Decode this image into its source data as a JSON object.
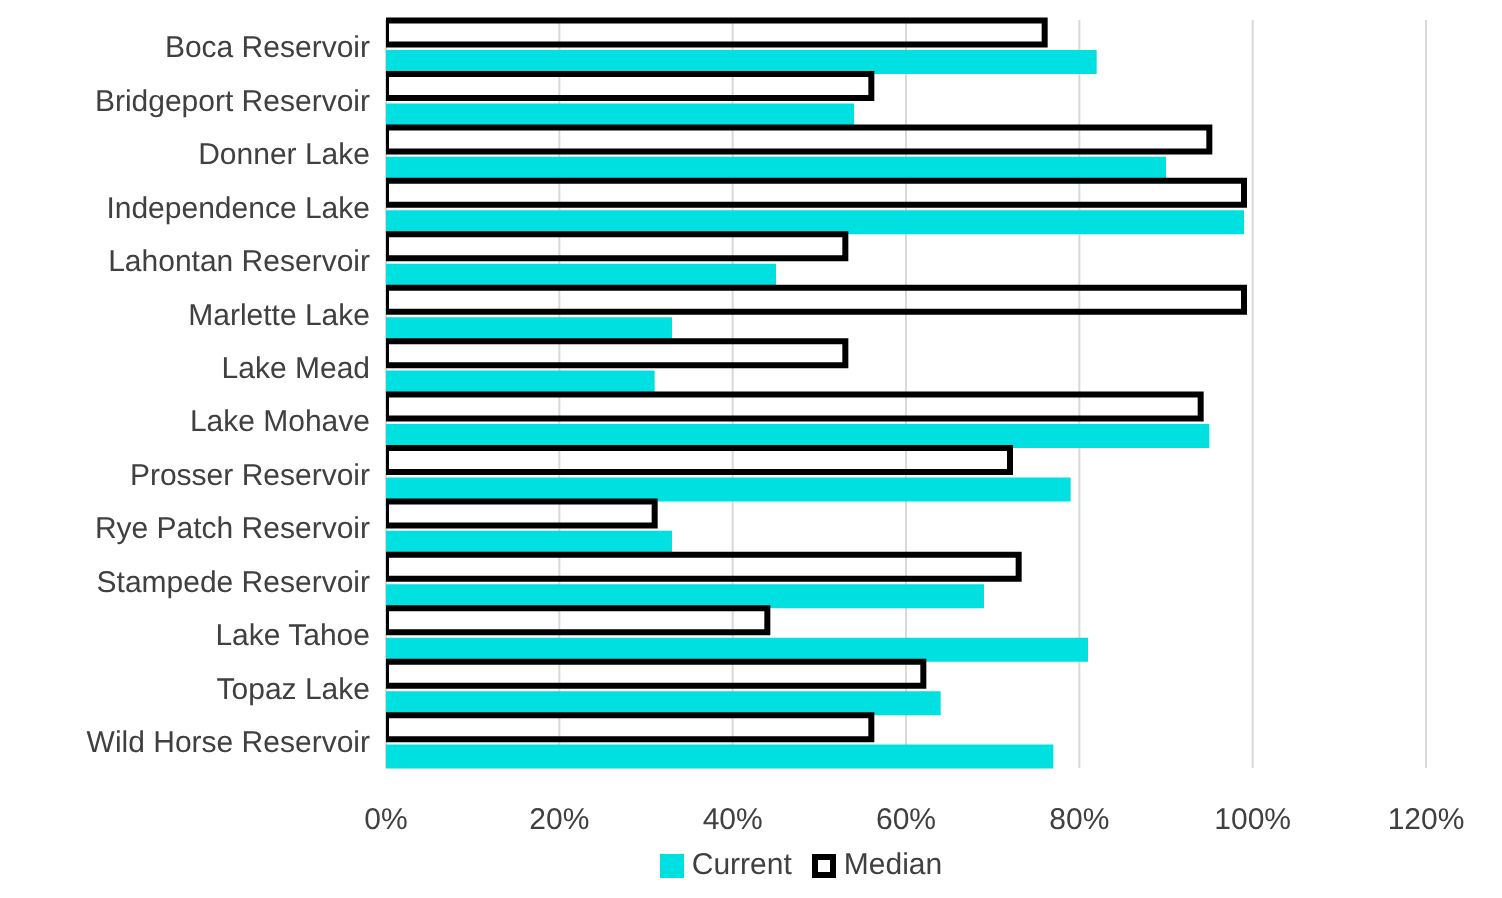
{
  "chart_data": {
    "type": "bar",
    "orientation": "horizontal",
    "categories": [
      "Boca Reservoir",
      "Bridgeport Reservoir",
      "Donner Lake",
      "Independence Lake",
      "Lahontan Reservoir",
      "Marlette Lake",
      "Lake Mead",
      "Lake Mohave",
      "Prosser Reservoir",
      "Rye Patch Reservoir",
      "Stampede Reservoir",
      "Lake Tahoe",
      "Topaz Lake",
      "Wild Horse Reservoir"
    ],
    "series": [
      {
        "name": "Current",
        "color": "#00e0e0",
        "values": [
          82,
          54,
          90,
          99,
          45,
          33,
          31,
          95,
          79,
          33,
          69,
          81,
          64,
          77
        ]
      },
      {
        "name": "Median",
        "color": "#000000",
        "values": [
          76,
          56,
          95,
          99,
          53,
          99,
          53,
          94,
          72,
          31,
          73,
          44,
          62,
          56
        ]
      }
    ],
    "xlim": [
      0,
      120
    ],
    "xticks": [
      {
        "value": 0,
        "label": "0%"
      },
      {
        "value": 20,
        "label": "20%"
      },
      {
        "value": 40,
        "label": "40%"
      },
      {
        "value": 60,
        "label": "60%"
      },
      {
        "value": 80,
        "label": "80%"
      },
      {
        "value": 100,
        "label": "100%"
      },
      {
        "value": 120,
        "label": "120%"
      }
    ],
    "grid": "x",
    "legend": "bottom"
  }
}
